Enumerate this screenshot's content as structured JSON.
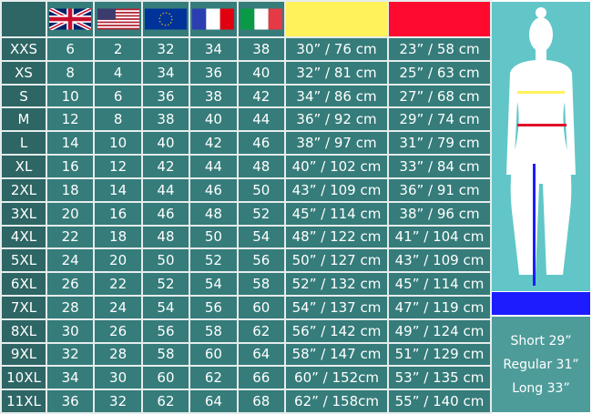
{
  "header": {
    "flags": [
      "uk-flag",
      "us-flag",
      "eu-flag",
      "france-flag",
      "italy-flag"
    ],
    "measure_colors": [
      "#fff25a",
      "#ff0a2f"
    ]
  },
  "rows": [
    [
      "XXS",
      "6",
      "2",
      "32",
      "34",
      "38",
      "30” / 76 cm",
      "23” / 58 cm"
    ],
    [
      "XS",
      "8",
      "4",
      "34",
      "36",
      "40",
      "32” / 81 cm",
      "25” / 63 cm"
    ],
    [
      "S",
      "10",
      "6",
      "36",
      "38",
      "42",
      "34” / 86 cm",
      "27” / 68 cm"
    ],
    [
      "M",
      "12",
      "8",
      "38",
      "40",
      "44",
      "36” / 92 cm",
      "29” / 74 cm"
    ],
    [
      "L",
      "14",
      "10",
      "40",
      "42",
      "46",
      "38” / 97 cm",
      "31” / 79 cm"
    ],
    [
      "XL",
      "16",
      "12",
      "42",
      "44",
      "48",
      "40” / 102 cm",
      "33” / 84 cm"
    ],
    [
      "2XL",
      "18",
      "14",
      "44",
      "46",
      "50",
      "43” / 109 cm",
      "36” / 91 cm"
    ],
    [
      "3XL",
      "20",
      "16",
      "46",
      "48",
      "52",
      "45” / 114 cm",
      "38” / 96 cm"
    ],
    [
      "4XL",
      "22",
      "18",
      "48",
      "50",
      "54",
      "48” / 122 cm",
      "41” / 104 cm"
    ],
    [
      "5XL",
      "24",
      "20",
      "50",
      "52",
      "56",
      "50” / 127 cm",
      "43” / 109 cm"
    ],
    [
      "6XL",
      "26",
      "22",
      "52",
      "54",
      "58",
      "52” / 132 cm",
      "45” / 114 cm"
    ],
    [
      "7XL",
      "28",
      "24",
      "54",
      "56",
      "60",
      "54” / 137 cm",
      "47” / 119 cm"
    ],
    [
      "8XL",
      "30",
      "26",
      "56",
      "58",
      "62",
      "56” / 142 cm",
      "49” / 124 cm"
    ],
    [
      "9XL",
      "32",
      "28",
      "58",
      "60",
      "64",
      "58” / 147 cm",
      "51” / 129 cm"
    ],
    [
      "10XL",
      "34",
      "30",
      "60",
      "62",
      "66",
      "60” / 152cm",
      "53” / 135 cm"
    ],
    [
      "11XL",
      "36",
      "32",
      "62",
      "64",
      "68",
      "62” / 158cm",
      "55” / 140 cm"
    ]
  ],
  "figure": {
    "hip_color": "#fff25a",
    "waist_color": "#e0102a",
    "inseam_color": "#1c1cff"
  },
  "lengths": [
    "Short 29”",
    "Regular 31”",
    "Long 33”"
  ]
}
